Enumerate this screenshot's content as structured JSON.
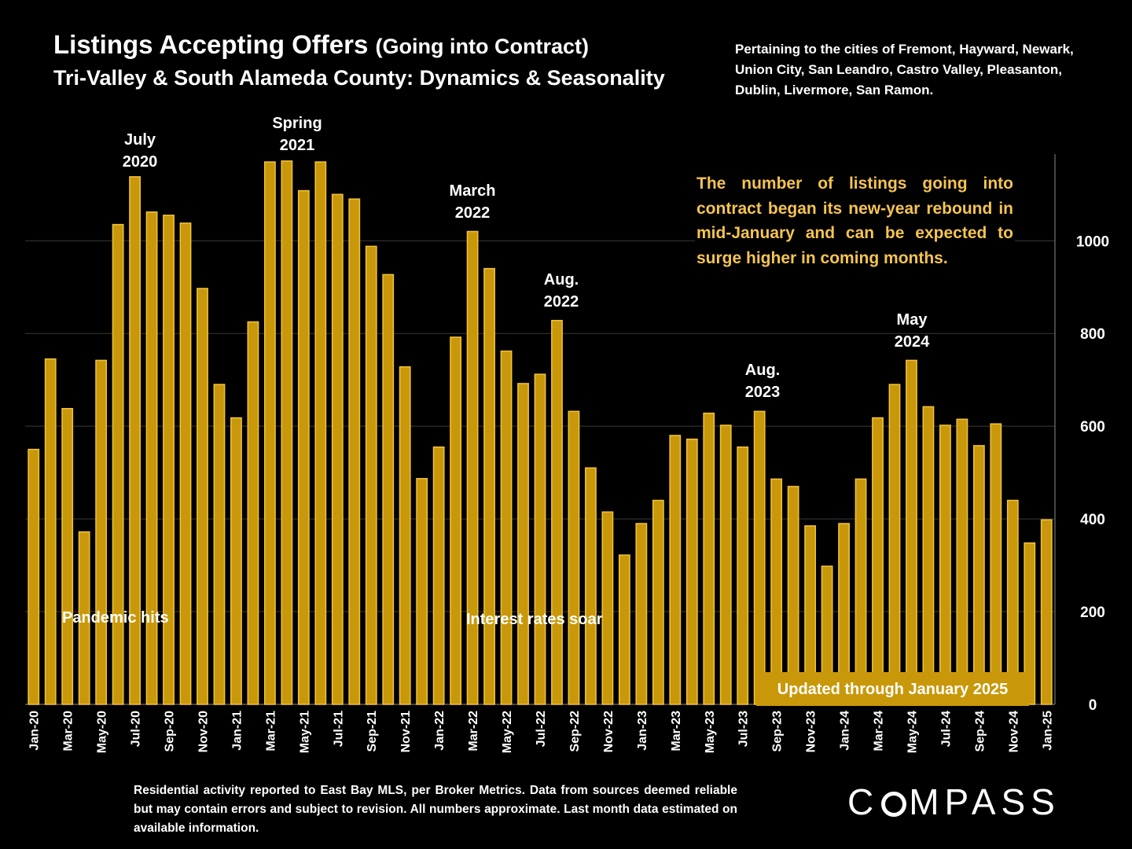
{
  "header": {
    "title": "Listings Accepting Offers",
    "title_suffix": "(Going into Contract)",
    "subtitle": "Tri-Valley & South Alameda County: Dynamics & Seasonality",
    "cities_note": "Pertaining to the cities of Fremont, Hayward, Newark, Union City, San Leandro, Castro Valley, Pleasanton, Dublin, Livermore, San Ramon."
  },
  "callout": "The number of listings going into contract began its new-year rebound in mid-January and can be expected to surge higher in coming months.",
  "updated_badge": "Updated through January 2025",
  "footnote": "Residential activity reported to East Bay MLS, per Broker Metrics. Data from sources deemed reliable but may contain errors and subject to revision.  All numbers approximate. Last month data estimated on available information.",
  "logo": {
    "before": "C",
    "after": "MPASS"
  },
  "annotations": {
    "july_2020": [
      "July",
      "2020"
    ],
    "spring_2021": [
      "Spring",
      "2021"
    ],
    "march_2022": [
      "March",
      "2022"
    ],
    "aug_2022": [
      "Aug.",
      "2022"
    ],
    "aug_2023": [
      "Aug.",
      "2023"
    ],
    "may_2024": [
      "May",
      "2024"
    ],
    "pandemic": "Pandemic hits",
    "rates": "Interest rates soar"
  },
  "colors": {
    "bar": "#c9980a",
    "bar_edge": "#f0c23c",
    "callout": "#f5c451",
    "grid": "#3a3a3a"
  },
  "chart_data": {
    "type": "bar",
    "x": [
      "Jan-20",
      "Feb-20",
      "Mar-20",
      "Apr-20",
      "May-20",
      "Jun-20",
      "Jul-20",
      "Aug-20",
      "Sep-20",
      "Oct-20",
      "Nov-20",
      "Dec-20",
      "Jan-21",
      "Feb-21",
      "Mar-21",
      "Apr-21",
      "May-21",
      "Jun-21",
      "Jul-21",
      "Aug-21",
      "Sep-21",
      "Oct-21",
      "Nov-21",
      "Dec-21",
      "Jan-22",
      "Feb-22",
      "Mar-22",
      "Apr-22",
      "May-22",
      "Jun-22",
      "Jul-22",
      "Aug-22",
      "Sep-22",
      "Oct-22",
      "Nov-22",
      "Dec-22",
      "Jan-23",
      "Feb-23",
      "Mar-23",
      "Apr-23",
      "May-23",
      "Jun-23",
      "Jul-23",
      "Aug-23",
      "Sep-23",
      "Oct-23",
      "Nov-23",
      "Dec-23",
      "Jan-24",
      "Feb-24",
      "Mar-24",
      "Apr-24",
      "May-24",
      "Jun-24",
      "Jul-24",
      "Aug-24",
      "Sep-24",
      "Oct-24",
      "Nov-24",
      "Dec-24",
      "Jan-25"
    ],
    "x_tick_labels": [
      "Jan-20",
      "Mar-20",
      "May-20",
      "Jul-20",
      "Sep-20",
      "Nov-20",
      "Jan-21",
      "Mar-21",
      "May-21",
      "Jul-21",
      "Sep-21",
      "Nov-21",
      "Jan-22",
      "Mar-22",
      "May-22",
      "Jul-22",
      "Sep-22",
      "Nov-22",
      "Jan-23",
      "Mar-23",
      "May-23",
      "Jul-23",
      "Sep-23",
      "Nov-23",
      "Jan-24",
      "Mar-24",
      "May-24",
      "Jul-24",
      "Sep-24",
      "Nov-24",
      "Jan-25"
    ],
    "values": [
      550,
      745,
      638,
      372,
      742,
      1035,
      1138,
      1062,
      1055,
      1038,
      897,
      690,
      618,
      825,
      1170,
      1172,
      1108,
      1170,
      1100,
      1090,
      988,
      927,
      728,
      487,
      555,
      792,
      1020,
      940,
      762,
      692,
      712,
      828,
      632,
      510,
      415,
      322,
      390,
      440,
      580,
      572,
      628,
      602,
      555,
      632,
      486,
      470,
      385,
      298,
      390,
      486,
      618,
      690,
      742,
      642,
      602,
      615,
      558,
      605,
      440,
      348,
      398
    ],
    "ylim": [
      0,
      1170
    ],
    "y_ticks": [
      0,
      200,
      400,
      600,
      800,
      1000
    ],
    "y_axis_side": "right",
    "grid": true
  }
}
